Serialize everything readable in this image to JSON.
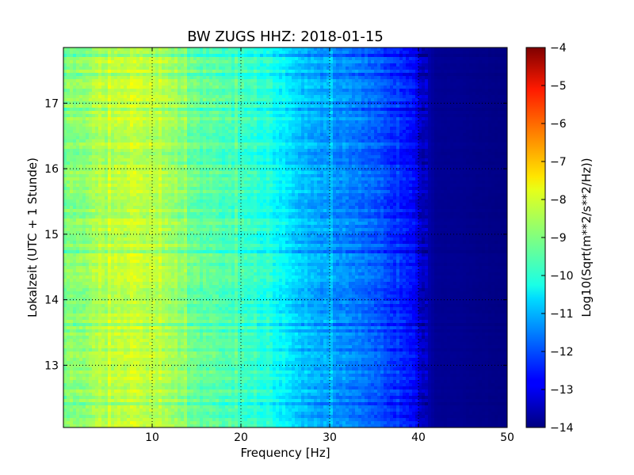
{
  "chart_data": {
    "type": "heatmap",
    "title": "BW ZUGS HHZ: 2018-01-15",
    "xlabel": "Frequency [Hz]",
    "ylabel": "Lokalzeit (UTC + 1 Stunde)",
    "xlim": [
      0,
      50
    ],
    "ylim": [
      17.85,
      12.05
    ],
    "x_ticks": [
      10,
      20,
      30,
      40,
      50
    ],
    "y_ticks": [
      13,
      14,
      15,
      16,
      17
    ],
    "grid": true,
    "colormap": "jet",
    "colorbar": {
      "label": "Log10(Sqrt(m**2/s**2/Hz))",
      "range": [
        -14,
        -4
      ],
      "ticks": [
        -4,
        -5,
        -6,
        -7,
        -8,
        -9,
        -10,
        -11,
        -12,
        -13,
        -14
      ]
    },
    "spectrum_profile": {
      "frequency_hz": [
        0,
        2,
        5,
        8,
        9,
        11,
        13,
        14,
        17,
        20,
        23,
        25,
        27,
        30,
        33,
        36,
        38,
        39.5,
        40.5,
        42,
        50
      ],
      "log10_amplitude": [
        -9.0,
        -8.8,
        -8.5,
        -8.3,
        -8.3,
        -8.5,
        -8.8,
        -9.2,
        -9.4,
        -9.6,
        -9.9,
        -10.4,
        -10.8,
        -11.2,
        -11.6,
        -12.0,
        -12.3,
        -12.6,
        -13.4,
        -13.8,
        -13.95
      ]
    }
  }
}
